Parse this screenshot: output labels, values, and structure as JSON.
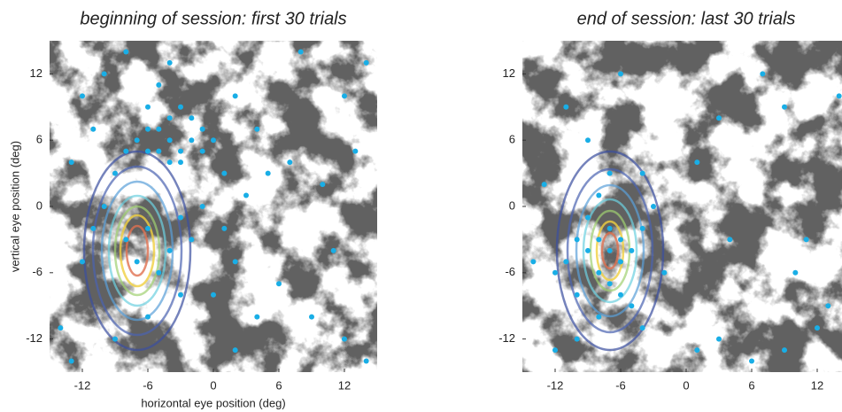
{
  "chart_data": [
    {
      "type": "scatter",
      "title": "beginning of session: first 30 trials",
      "x_label": "horizontal eye position (deg)",
      "y_label": "vertical eye position (deg)",
      "color": "#19aee6",
      "xlim": [
        -15,
        15
      ],
      "ylim": [
        -15,
        15
      ],
      "xticks": [
        -12,
        -6,
        0,
        6,
        12
      ],
      "yticks": [
        -12,
        -6,
        0,
        6,
        12
      ],
      "x": [
        -4,
        -3,
        -5,
        -6,
        -2,
        -1,
        -4,
        -7,
        -3,
        -5,
        -6,
        -2,
        -8,
        -4,
        -1,
        0,
        -3,
        -6,
        -5,
        -4,
        -8,
        -10,
        -12,
        -11,
        -13,
        -9,
        -10,
        -8,
        -7,
        -6,
        -5,
        -4,
        -3,
        -2,
        -1,
        1,
        2,
        0,
        -3,
        -6,
        -9,
        -13,
        3,
        5,
        7,
        10,
        13,
        12,
        8,
        14,
        11,
        6,
        4,
        2,
        9,
        12,
        14,
        -14,
        -12,
        -11,
        4,
        2,
        1
      ],
      "y": [
        6,
        5,
        7,
        5,
        6,
        7,
        8,
        6,
        4,
        5,
        7,
        8,
        5,
        4,
        5,
        6,
        9,
        9,
        11,
        13,
        14,
        12,
        10,
        7,
        4,
        3,
        0,
        -3,
        -5,
        -2,
        -6,
        -4,
        -1,
        -3,
        0,
        -2,
        -5,
        -8,
        -8,
        -10,
        -12,
        -14,
        1,
        3,
        4,
        2,
        5,
        10,
        14,
        13,
        -4,
        -7,
        -10,
        -13,
        -10,
        -12,
        -14,
        -11,
        -5,
        -2,
        7,
        10,
        3
      ]
    },
    {
      "type": "scatter",
      "title": "end of session: last 30 trials",
      "color": "#19aee6",
      "xlim": [
        -15,
        15
      ],
      "ylim": [
        -15,
        15
      ],
      "xticks": [
        -12,
        -6,
        0,
        6,
        12
      ],
      "yticks": [
        -12,
        -6,
        0,
        6,
        12
      ],
      "x": [
        -7,
        -8,
        -6,
        -7,
        -9,
        -6,
        -8,
        -7,
        -5,
        -10,
        -11,
        -12,
        -14,
        -9,
        -8,
        -7,
        -6,
        -5,
        -8,
        -10,
        -12,
        -4,
        -3,
        -4,
        -9,
        -11,
        -6,
        -2,
        -4,
        1,
        3,
        6,
        9,
        12,
        13,
        11,
        10,
        14,
        9,
        7,
        3,
        1,
        4,
        -13,
        -10
      ],
      "y": [
        -4,
        -3,
        -5,
        -2,
        -4,
        -3,
        -6,
        -7,
        -4,
        -3,
        -5,
        -6,
        -5,
        -1,
        1,
        3,
        -8,
        -9,
        -10,
        -12,
        -13,
        -2,
        0,
        3,
        6,
        9,
        12,
        -6,
        -11,
        -13,
        -12,
        -14,
        -13,
        -11,
        -9,
        -3,
        -6,
        10,
        9,
        12,
        8,
        4,
        -3,
        2,
        -8
      ]
    }
  ]
}
